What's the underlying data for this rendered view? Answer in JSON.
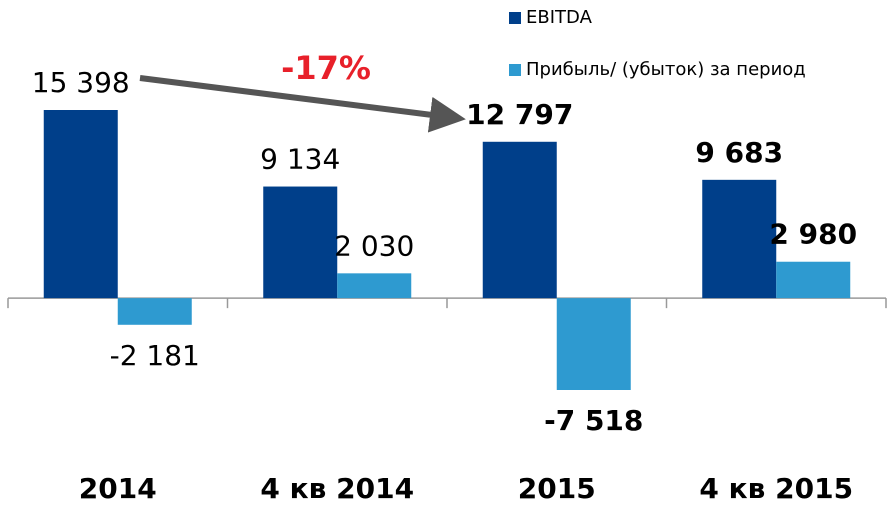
{
  "chart_data": {
    "type": "bar",
    "categories": [
      "2014",
      "4 кв 2014",
      "2015",
      "4 кв 2015"
    ],
    "series": [
      {
        "name": "EBITDA",
        "color": "#003f8a",
        "values": [
          15398,
          9134,
          12797,
          9683
        ],
        "value_labels": [
          "15 398",
          "9 134",
          "12 797",
          "9 683"
        ]
      },
      {
        "name": "Прибыль/ (убыток) за период",
        "color": "#2e9ad0",
        "values": [
          -2181,
          2030,
          -7518,
          2980
        ],
        "value_labels": [
          "-2 181",
          "2 030",
          "-7 518",
          "2 980"
        ]
      }
    ],
    "annotation": "-17%"
  }
}
